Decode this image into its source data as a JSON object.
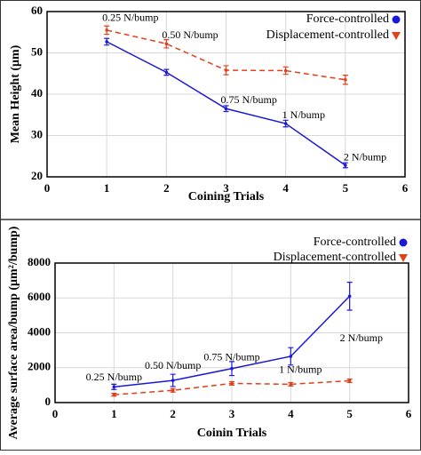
{
  "chart_data": [
    {
      "type": "line",
      "xlabel": "Coining Trials",
      "ylabel": "Mean Height (μm)",
      "x": [
        1,
        2,
        3,
        4,
        5
      ],
      "series": [
        {
          "name": "Force-controlled",
          "color": "#1a1ad6",
          "marker": "circle",
          "values": [
            52.7,
            45.3,
            36.5,
            32.9,
            22.8
          ],
          "errors": [
            0.8,
            0.7,
            0.7,
            0.8,
            0.6
          ]
        },
        {
          "name": "Displacement-controlled",
          "color": "#e0401a",
          "marker": "triangle-down",
          "dashed": true,
          "values": [
            55.5,
            52.2,
            45.8,
            45.7,
            43.5
          ],
          "errors": [
            1.0,
            1.0,
            1.1,
            0.9,
            1.1
          ]
        }
      ],
      "annotations": [
        "0.25 N/bump",
        "0.50 N/bump",
        "0.75 N/bump",
        "1 N/bump",
        "2 N/bump"
      ],
      "xlim": [
        0,
        6
      ],
      "xticks": [
        0,
        1,
        2,
        3,
        4,
        5,
        6
      ],
      "ylim": [
        20,
        60
      ],
      "yticks": [
        20,
        30,
        40,
        50,
        60
      ],
      "grid": true,
      "legend": "upper right"
    },
    {
      "type": "line",
      "xlabel": "Coinin Trials",
      "ylabel": "Average surface area/bump (μm²/bump)",
      "x": [
        1,
        2,
        3,
        4,
        5
      ],
      "series": [
        {
          "name": "Force-controlled",
          "color": "#1a1ad6",
          "marker": "circle",
          "values": [
            900,
            1270,
            1950,
            2650,
            6100
          ],
          "errors": [
            150,
            350,
            400,
            500,
            800
          ]
        },
        {
          "name": "Displacement-controlled",
          "color": "#e0401a",
          "marker": "triangle-down",
          "dashed": true,
          "values": [
            450,
            700,
            1100,
            1050,
            1250
          ],
          "errors": [
            80,
            100,
            100,
            100,
            100
          ]
        }
      ],
      "annotations": [
        "0.25 N/bump",
        "0.50 N/bump",
        "0.75 N/bump",
        "1 N/bump",
        "2 N/bump"
      ],
      "xlim": [
        0,
        6
      ],
      "xticks": [
        0,
        1,
        2,
        3,
        4,
        5,
        6
      ],
      "ylim": [
        0,
        8000
      ],
      "yticks": [
        0,
        2000,
        4000,
        6000,
        8000
      ],
      "grid": true,
      "legend": "upper right"
    }
  ]
}
